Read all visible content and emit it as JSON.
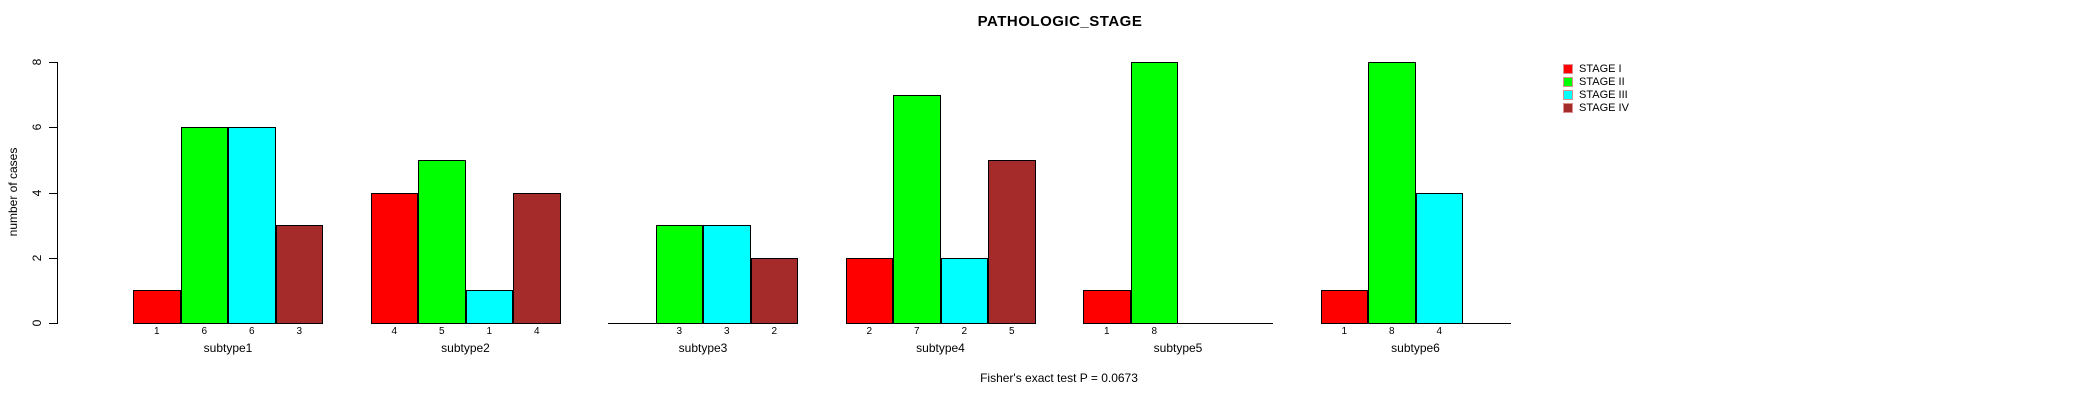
{
  "title": "PATHOLOGIC_STAGE",
  "ylabel": "number of cases",
  "footer": "Fisher's exact test P = 0.0673",
  "chart_data": {
    "type": "bar",
    "title": "PATHOLOGIC_STAGE",
    "xlabel": "",
    "ylabel": "number of cases",
    "ylim": [
      0,
      8
    ],
    "yticks": [
      0,
      2,
      4,
      6,
      8
    ],
    "grid": false,
    "legend_position": "right",
    "bar_value_labels": true,
    "hide_zero_value_labels": true,
    "categories": [
      "subtype1",
      "subtype2",
      "subtype3",
      "subtype4",
      "subtype5",
      "subtype6"
    ],
    "series": [
      {
        "name": "STAGE I",
        "color": "#ff0000",
        "values": [
          1,
          4,
          0,
          2,
          1,
          1
        ]
      },
      {
        "name": "STAGE II",
        "color": "#00ff00",
        "values": [
          6,
          5,
          3,
          7,
          8,
          8
        ]
      },
      {
        "name": "STAGE III",
        "color": "#00ffff",
        "values": [
          6,
          1,
          3,
          2,
          0,
          4
        ]
      },
      {
        "name": "STAGE IV",
        "color": "#a52a2a",
        "values": [
          3,
          4,
          2,
          5,
          0,
          0
        ]
      }
    ],
    "annotation": "Fisher's exact test P = 0.0673"
  }
}
